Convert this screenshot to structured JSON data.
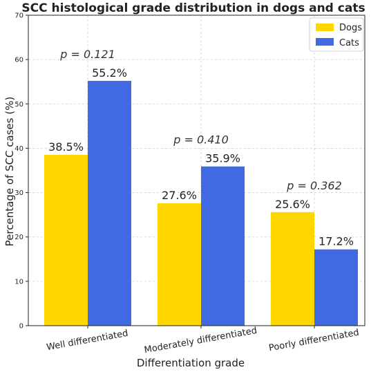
{
  "chart_data": {
    "type": "bar",
    "title": "SCC histological grade distribution in dogs and cats",
    "xlabel": "Differentiation grade",
    "ylabel": "Percentage of SCC cases (%)",
    "ylim": [
      0,
      70
    ],
    "yticks": [
      0,
      10,
      20,
      30,
      40,
      50,
      60,
      70
    ],
    "categories": [
      "Well differentiated",
      "Moderately differentiated",
      "Poorly differentiated"
    ],
    "series": [
      {
        "name": "Dogs",
        "color": "#FFD700",
        "values": [
          38.5,
          27.6,
          25.6
        ],
        "labels": [
          "38.5%",
          "27.6%",
          "25.6%"
        ]
      },
      {
        "name": "Cats",
        "color": "#4169E1",
        "values": [
          55.2,
          35.9,
          17.2
        ],
        "labels": [
          "55.2%",
          "35.9%",
          "17.2%"
        ]
      }
    ],
    "annotations": [
      "p = 0.121",
      "p = 0.410",
      "p = 0.362"
    ],
    "grid": true,
    "legend_position": "top-right"
  }
}
